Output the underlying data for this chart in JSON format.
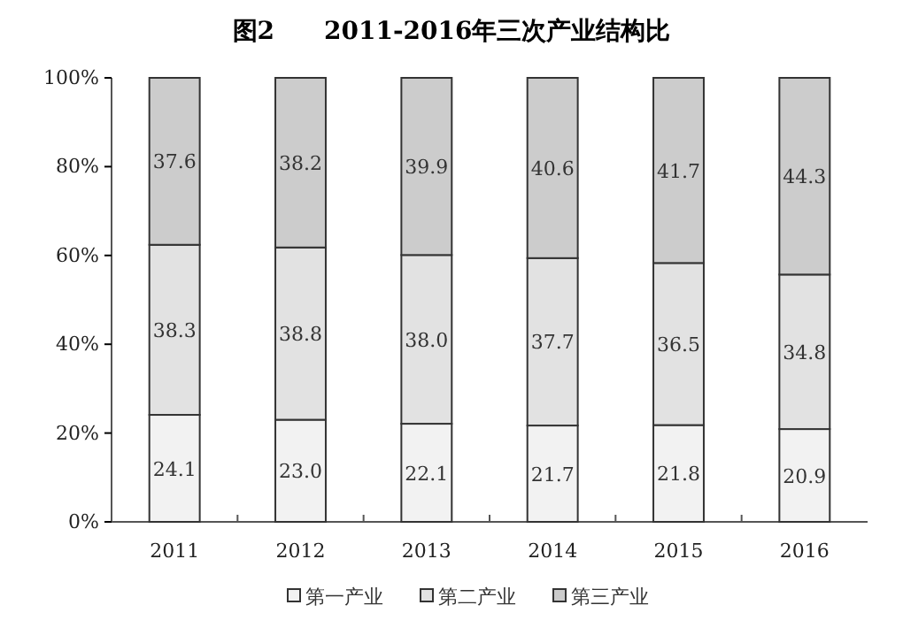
{
  "chart_data": {
    "type": "bar",
    "title": "图2　　2011-2016年三次产业结构比",
    "stacked": true,
    "categories": [
      "2011",
      "2012",
      "2013",
      "2014",
      "2015",
      "2016"
    ],
    "series": [
      {
        "name": "第一产业",
        "color": "#f2f2f2",
        "values": [
          24.1,
          23.0,
          22.1,
          21.7,
          21.8,
          20.9
        ],
        "value_labels": [
          "24.1",
          "23.0",
          "22.1",
          "21.7",
          "21.8",
          "20.9"
        ]
      },
      {
        "name": "第二产业",
        "color": "#e2e2e2",
        "values": [
          38.3,
          38.8,
          38.0,
          37.7,
          36.5,
          34.8
        ],
        "value_labels": [
          "38.3",
          "38.8",
          "38.0",
          "37.7",
          "36.5",
          "34.8"
        ]
      },
      {
        "name": "第三产业",
        "color": "#cccccc",
        "values": [
          37.6,
          38.2,
          39.9,
          40.6,
          41.7,
          44.3
        ],
        "value_labels": [
          "37.6",
          "38.2",
          "39.9",
          "40.6",
          "41.7",
          "44.3"
        ]
      }
    ],
    "ylim": [
      0,
      100
    ],
    "yticks": [
      {
        "value": 0,
        "label": "0%"
      },
      {
        "value": 20,
        "label": "20%"
      },
      {
        "value": 40,
        "label": "40%"
      },
      {
        "value": 60,
        "label": "60%"
      },
      {
        "value": 80,
        "label": "80%"
      },
      {
        "value": 100,
        "label": "100%"
      }
    ],
    "grid": false,
    "legend": "bottom"
  }
}
